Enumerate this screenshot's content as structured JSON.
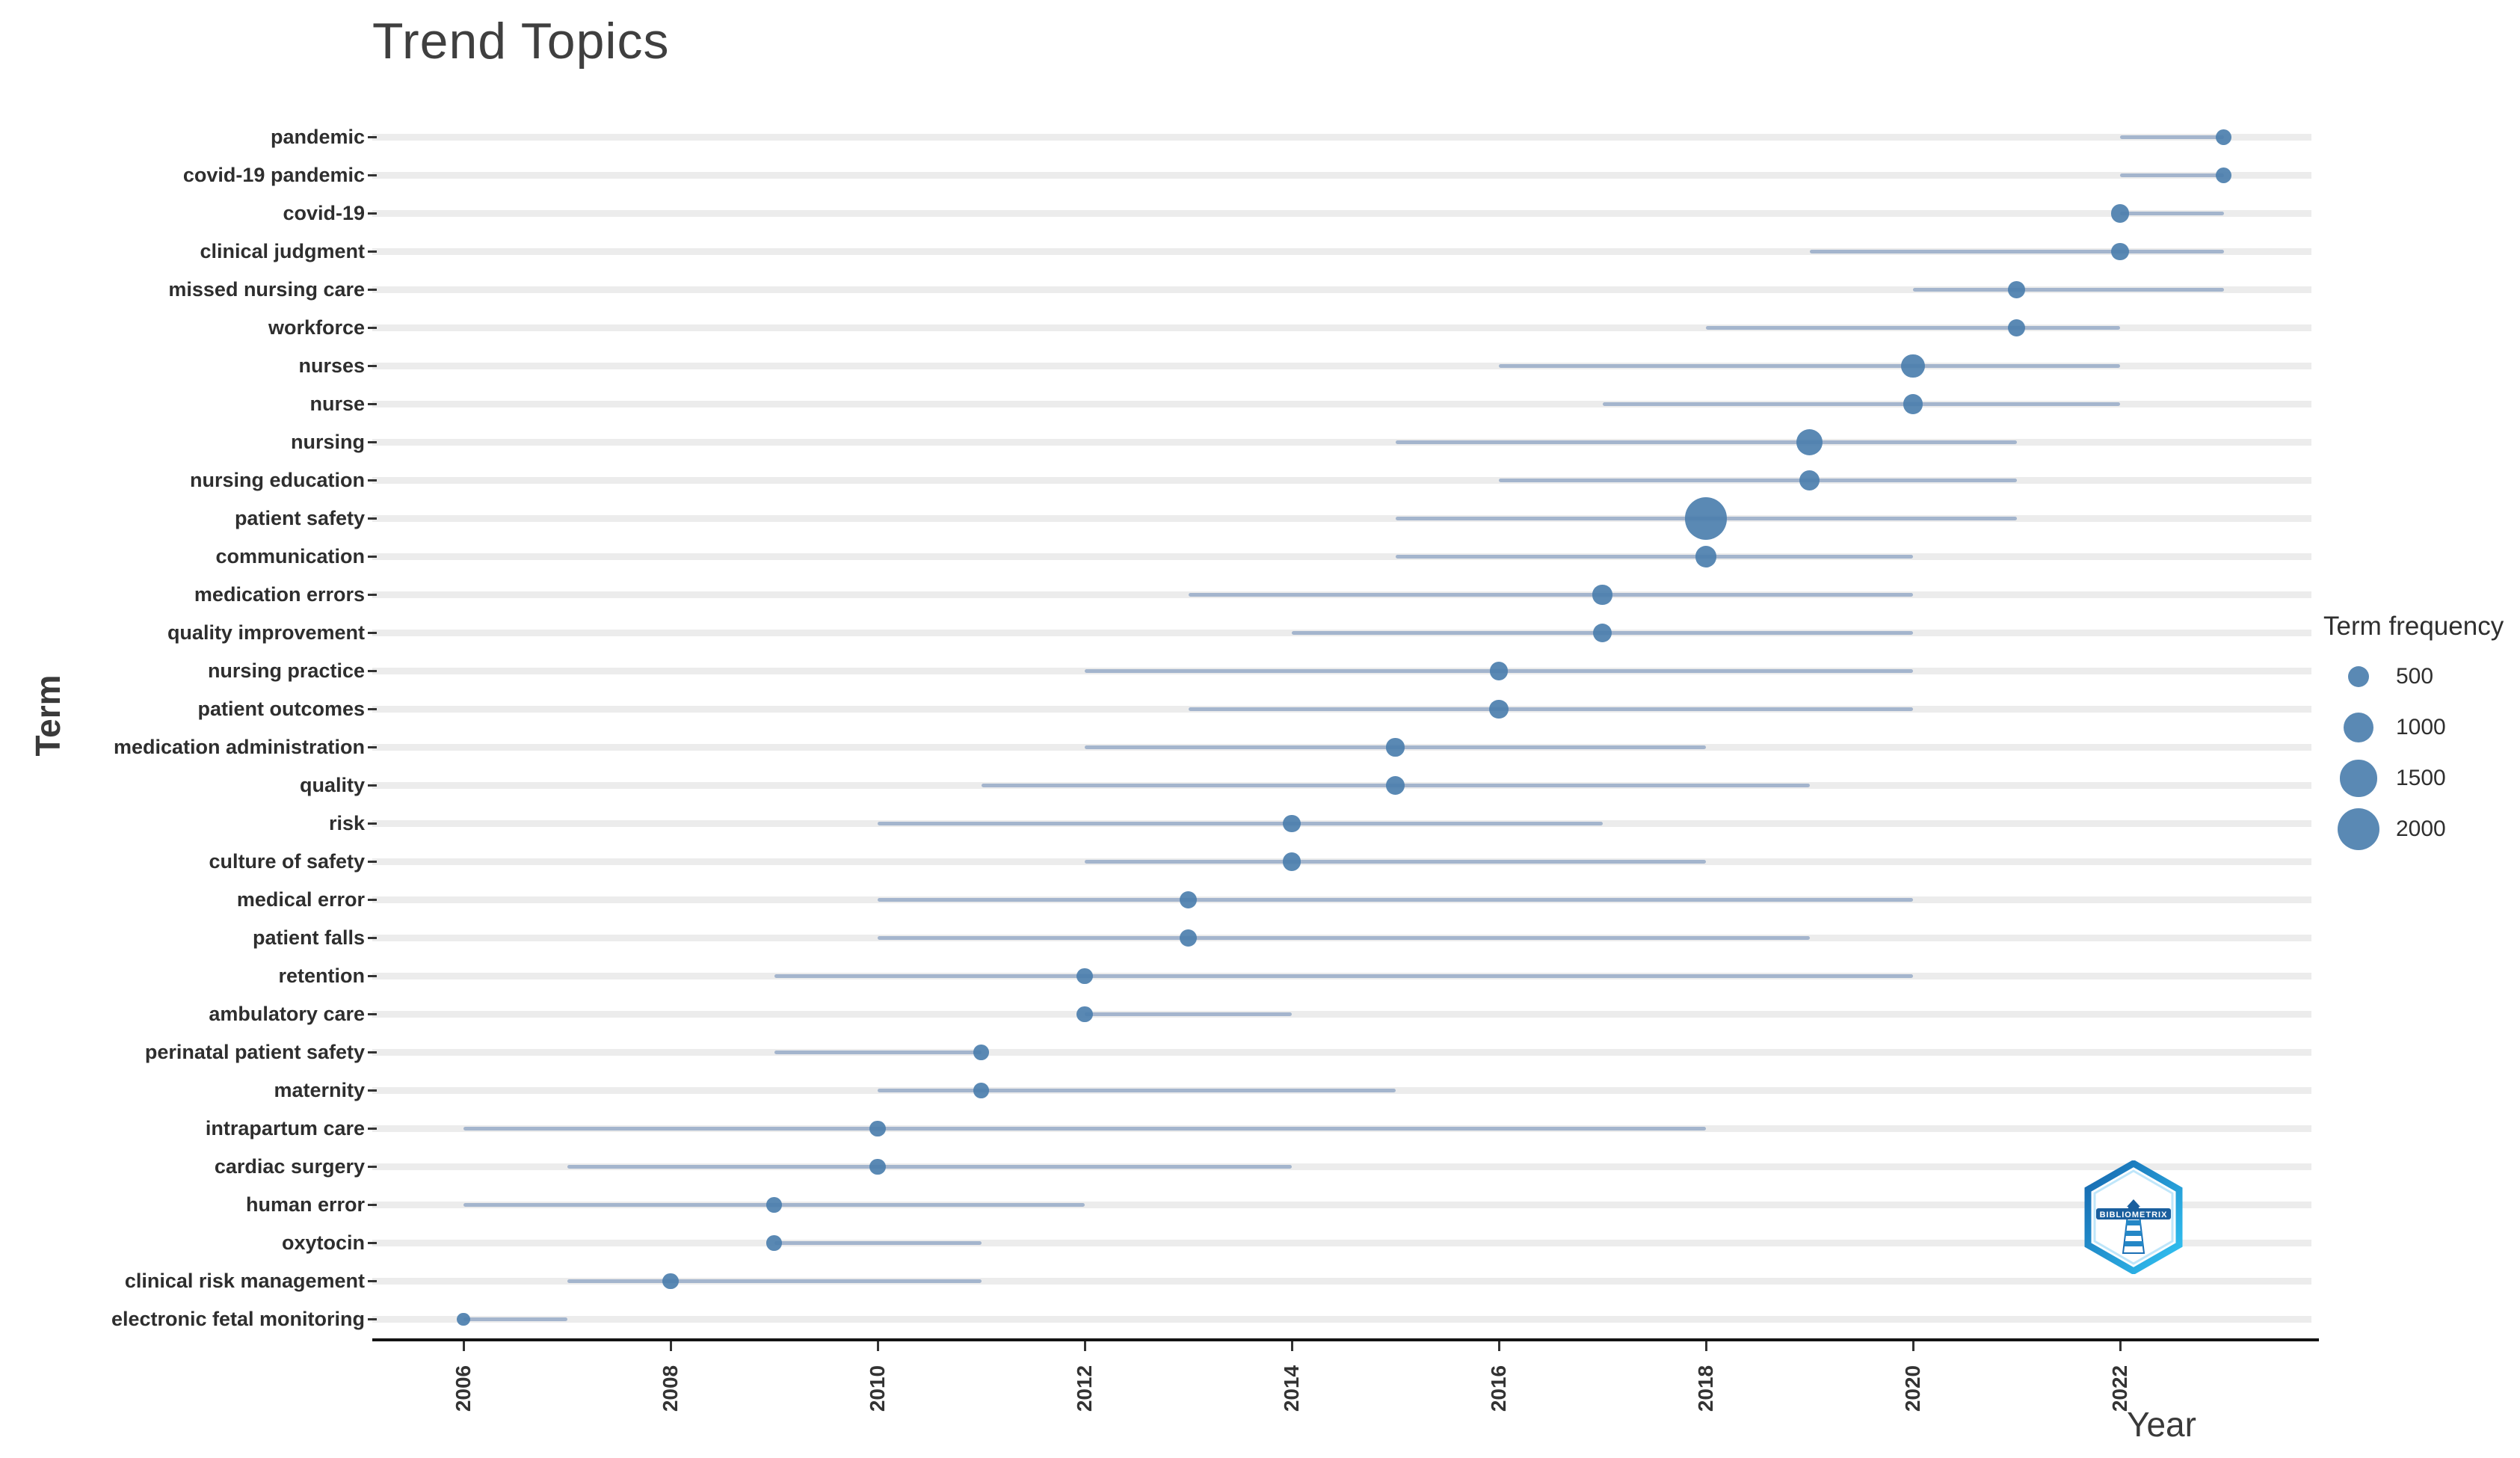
{
  "title": "Trend Topics",
  "axes": {
    "x_label": "Year",
    "y_label": "Term"
  },
  "legend": {
    "title": "Term frequency",
    "sizes": [
      500,
      1000,
      1500,
      2000
    ]
  },
  "watermark": {
    "label": "BIBLIOMETRIX"
  },
  "colors": {
    "dot": "#4c7fae",
    "line": "#92a7c5",
    "stripe": "#ececec",
    "axis": "#141414",
    "text": "#2e2e2e",
    "logo_dark_blue": "#1a5f9e",
    "logo_cyan": "#32c5f4"
  },
  "chart_data": {
    "type": "scatter",
    "title": "Trend Topics",
    "xlabel": "Year",
    "ylabel": "Term",
    "x_ticks": [
      2006,
      2008,
      2010,
      2012,
      2014,
      2016,
      2018,
      2020,
      2022
    ],
    "xlim": [
      2005.2,
      2023.8
    ],
    "grid": "horizontal-stripes",
    "legend": {
      "title": "Term frequency",
      "sizes": [
        500,
        1000,
        1500,
        2000
      ],
      "position": "right"
    },
    "terms": [
      {
        "term": "pandemic",
        "year_start": 2022,
        "year_peak": 2023,
        "year_end": 2023,
        "frequency": 300
      },
      {
        "term": "covid-19 pandemic",
        "year_start": 2022,
        "year_peak": 2023,
        "year_end": 2023,
        "frequency": 280
      },
      {
        "term": "covid-19",
        "year_start": 2022,
        "year_peak": 2022,
        "year_end": 2023,
        "frequency": 380
      },
      {
        "term": "clinical judgment",
        "year_start": 2019,
        "year_peak": 2022,
        "year_end": 2023,
        "frequency": 350
      },
      {
        "term": "missed nursing care",
        "year_start": 2020,
        "year_peak": 2021,
        "year_end": 2023,
        "frequency": 320
      },
      {
        "term": "workforce",
        "year_start": 2018,
        "year_peak": 2021,
        "year_end": 2022,
        "frequency": 330
      },
      {
        "term": "nurses",
        "year_start": 2016,
        "year_peak": 2020,
        "year_end": 2022,
        "frequency": 600
      },
      {
        "term": "nurse",
        "year_start": 2017,
        "year_peak": 2020,
        "year_end": 2022,
        "frequency": 450
      },
      {
        "term": "nursing",
        "year_start": 2015,
        "year_peak": 2019,
        "year_end": 2021,
        "frequency": 800
      },
      {
        "term": "nursing education",
        "year_start": 2016,
        "year_peak": 2019,
        "year_end": 2021,
        "frequency": 450
      },
      {
        "term": "patient safety",
        "year_start": 2015,
        "year_peak": 2018,
        "year_end": 2021,
        "frequency": 2000
      },
      {
        "term": "communication",
        "year_start": 2015,
        "year_peak": 2018,
        "year_end": 2020,
        "frequency": 500
      },
      {
        "term": "medication errors",
        "year_start": 2013,
        "year_peak": 2017,
        "year_end": 2020,
        "frequency": 420
      },
      {
        "term": "quality improvement",
        "year_start": 2014,
        "year_peak": 2017,
        "year_end": 2020,
        "frequency": 400
      },
      {
        "term": "nursing practice",
        "year_start": 2012,
        "year_peak": 2016,
        "year_end": 2020,
        "frequency": 380
      },
      {
        "term": "patient outcomes",
        "year_start": 2013,
        "year_peak": 2016,
        "year_end": 2020,
        "frequency": 400
      },
      {
        "term": "medication administration",
        "year_start": 2012,
        "year_peak": 2015,
        "year_end": 2018,
        "frequency": 360
      },
      {
        "term": "quality",
        "year_start": 2011,
        "year_peak": 2015,
        "year_end": 2019,
        "frequency": 380
      },
      {
        "term": "risk",
        "year_start": 2010,
        "year_peak": 2014,
        "year_end": 2017,
        "frequency": 340
      },
      {
        "term": "culture of safety",
        "year_start": 2012,
        "year_peak": 2014,
        "year_end": 2018,
        "frequency": 360
      },
      {
        "term": "medical error",
        "year_start": 2010,
        "year_peak": 2013,
        "year_end": 2020,
        "frequency": 340
      },
      {
        "term": "patient falls",
        "year_start": 2010,
        "year_peak": 2013,
        "year_end": 2019,
        "frequency": 340
      },
      {
        "term": "retention",
        "year_start": 2009,
        "year_peak": 2012,
        "year_end": 2020,
        "frequency": 300
      },
      {
        "term": "ambulatory care",
        "year_start": 2012,
        "year_peak": 2012,
        "year_end": 2014,
        "frequency": 280
      },
      {
        "term": "perinatal patient safety",
        "year_start": 2009,
        "year_peak": 2011,
        "year_end": 2011,
        "frequency": 260
      },
      {
        "term": "maternity",
        "year_start": 2010,
        "year_peak": 2011,
        "year_end": 2015,
        "frequency": 260
      },
      {
        "term": "intrapartum care",
        "year_start": 2006,
        "year_peak": 2010,
        "year_end": 2018,
        "frequency": 300
      },
      {
        "term": "cardiac surgery",
        "year_start": 2007,
        "year_peak": 2010,
        "year_end": 2014,
        "frequency": 300
      },
      {
        "term": "human error",
        "year_start": 2006,
        "year_peak": 2009,
        "year_end": 2012,
        "frequency": 260
      },
      {
        "term": "oxytocin",
        "year_start": 2009,
        "year_peak": 2009,
        "year_end": 2011,
        "frequency": 260
      },
      {
        "term": "clinical risk management",
        "year_start": 2007,
        "year_peak": 2008,
        "year_end": 2011,
        "frequency": 280
      },
      {
        "term": "electronic fetal monitoring",
        "year_start": 2006,
        "year_peak": 2006,
        "year_end": 2007,
        "frequency": 200
      }
    ]
  }
}
